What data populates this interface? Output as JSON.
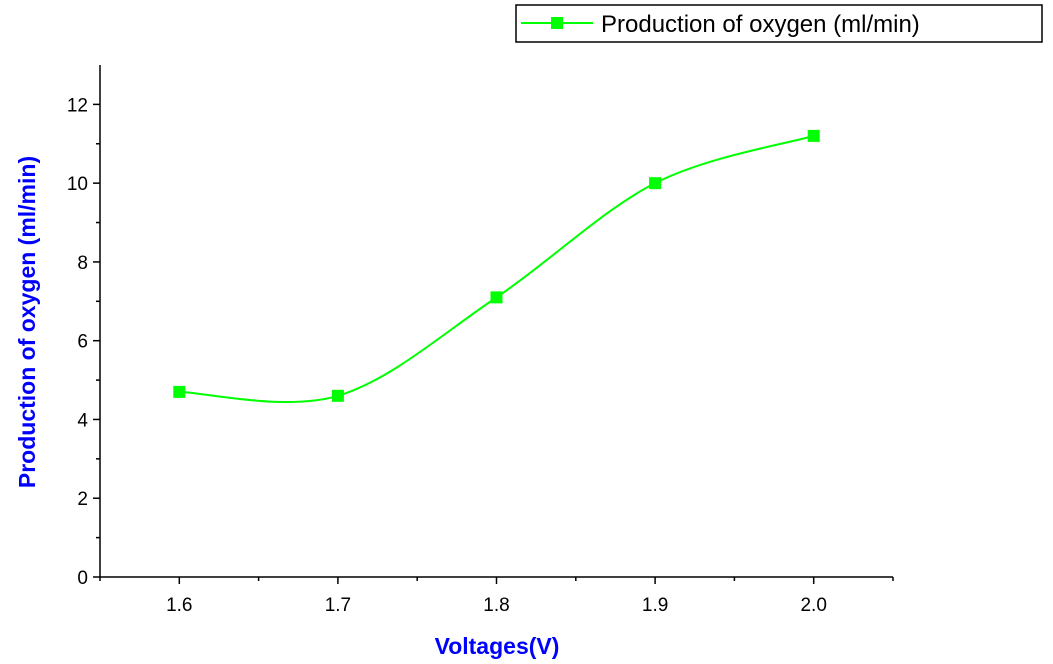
{
  "chart_data": {
    "type": "line",
    "x": [
      1.6,
      1.7,
      1.8,
      1.9,
      2.0
    ],
    "series": [
      {
        "name": "Production of oxygen (ml/min)",
        "values": [
          4.7,
          4.6,
          7.1,
          10.0,
          11.2
        ]
      }
    ],
    "xlabel": "Voltages(V)",
    "ylabel": "Production of oxygen (ml/min)",
    "xlim": [
      1.55,
      2.05
    ],
    "ylim": [
      0,
      13
    ],
    "xticks": [
      "1.6",
      "1.7",
      "1.8",
      "1.9",
      "2.0"
    ],
    "yticks": [
      "0",
      "2",
      "4",
      "6",
      "8",
      "10",
      "12"
    ],
    "grid": false,
    "legend_position": "top-right",
    "line_color": "#00ff00",
    "label_color": "#0000ff",
    "smoothed": true,
    "marker": "square"
  }
}
